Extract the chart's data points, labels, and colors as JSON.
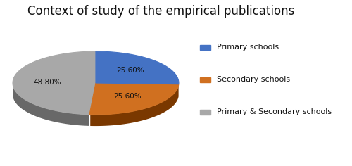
{
  "title": "Context of study of the empirical publications",
  "slices": [
    25.6,
    25.6,
    48.8
  ],
  "labels": [
    "Primary schools",
    "Secondary schools",
    "Primary & Secondary schools"
  ],
  "colors": [
    "#4472C4",
    "#D07020",
    "#A8A8A8"
  ],
  "dark_colors": [
    "#2a4a8a",
    "#7a3800",
    "#686868"
  ],
  "autopct_labels": [
    "25.60%",
    "25.60%",
    "48.80%"
  ],
  "label_colors": [
    "#1a1a1a",
    "#1a1a1a",
    "#1a1a1a"
  ],
  "startangle": 90,
  "title_fontsize": 12,
  "legend_fontsize": 8
}
